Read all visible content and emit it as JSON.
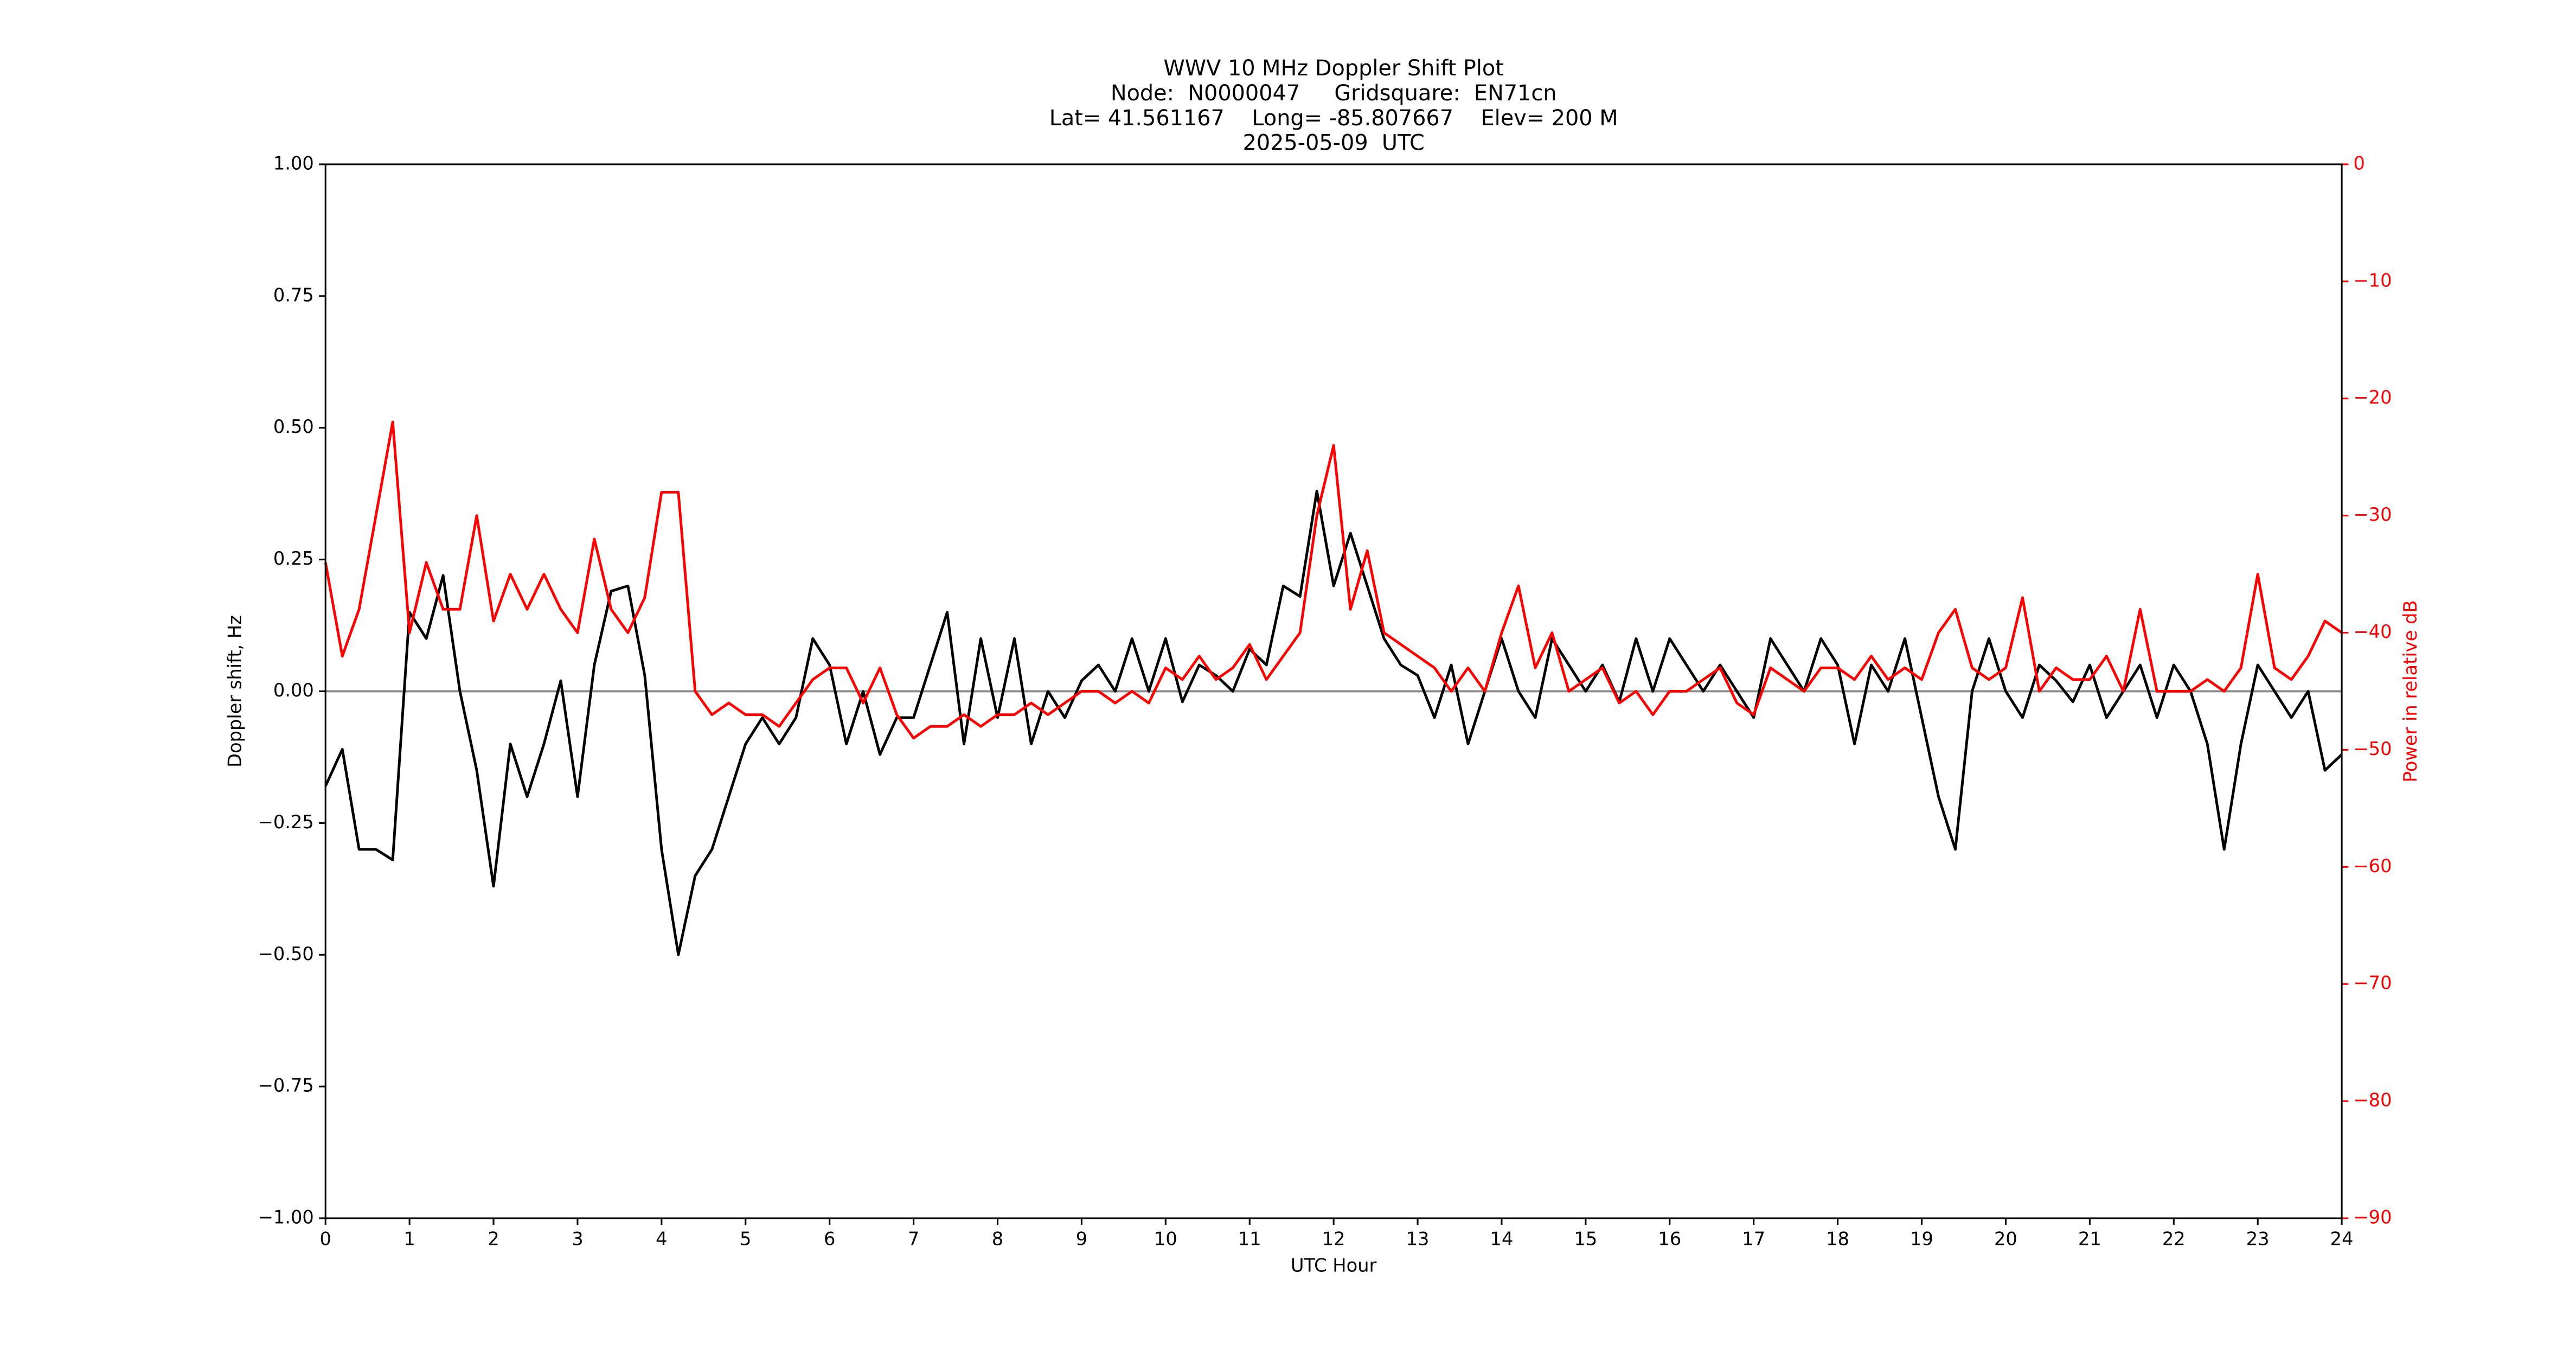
{
  "chart_data": {
    "type": "line",
    "title_lines": [
      "WWV 10 MHz Doppler Shift Plot",
      "Node:  N0000047     Gridsquare:  EN71cn",
      "Lat= 41.561167    Long= -85.807667    Elev= 200 M",
      "2025-05-09  UTC"
    ],
    "xlabel": "UTC Hour",
    "ylabel": "Doppler shift, Hz",
    "y2label": "Power in relative dB",
    "y2color": "#ff0000",
    "xlim": [
      0,
      24
    ],
    "xticks": [
      0,
      1,
      2,
      3,
      4,
      5,
      6,
      7,
      8,
      9,
      10,
      11,
      12,
      13,
      14,
      15,
      16,
      17,
      18,
      19,
      20,
      21,
      22,
      23,
      24
    ],
    "ylim": [
      -1,
      1
    ],
    "yticks": [
      {
        "value": -1,
        "label": "−1.00"
      },
      {
        "value": -0.75,
        "label": "−0.75"
      },
      {
        "value": -0.5,
        "label": "−0.50"
      },
      {
        "value": -0.25,
        "label": "−0.25"
      },
      {
        "value": 0,
        "label": "0.00"
      },
      {
        "value": 0.25,
        "label": "0.25"
      },
      {
        "value": 0.5,
        "label": "0.50"
      },
      {
        "value": 0.75,
        "label": "0.75"
      },
      {
        "value": 1,
        "label": "1.00"
      }
    ],
    "y2lim": [
      -90,
      0
    ],
    "y2ticks": [
      {
        "value": -90,
        "label": "−90"
      },
      {
        "value": -80,
        "label": "−80"
      },
      {
        "value": -70,
        "label": "−70"
      },
      {
        "value": -60,
        "label": "−60"
      },
      {
        "value": -50,
        "label": "−50"
      },
      {
        "value": -40,
        "label": "−40"
      },
      {
        "value": -30,
        "label": "−30"
      },
      {
        "value": -20,
        "label": "−20"
      },
      {
        "value": -10,
        "label": "−10"
      },
      0
    ],
    "reference_line": 0,
    "reference_color": "#888888",
    "x": [
      0,
      0.2,
      0.4,
      0.6,
      0.8,
      1,
      1.2,
      1.4,
      1.6,
      1.8,
      2,
      2.2,
      2.4,
      2.6,
      2.8,
      3,
      3.2,
      3.4,
      3.6,
      3.8,
      4,
      4.2,
      4.4,
      4.6,
      4.8,
      5,
      5.2,
      5.4,
      5.6,
      5.8,
      6,
      6.2,
      6.4,
      6.6,
      6.8,
      7,
      7.2,
      7.4,
      7.6,
      7.8,
      8,
      8.2,
      8.4,
      8.6,
      8.8,
      9,
      9.2,
      9.4,
      9.6,
      9.8,
      10,
      10.2,
      10.4,
      10.6,
      10.8,
      11,
      11.2,
      11.4,
      11.6,
      11.8,
      12,
      12.2,
      12.4,
      12.6,
      12.8,
      13,
      13.2,
      13.4,
      13.6,
      13.8,
      14,
      14.2,
      14.4,
      14.6,
      14.8,
      15,
      15.2,
      15.4,
      15.6,
      15.8,
      16,
      16.2,
      16.4,
      16.6,
      16.8,
      17,
      17.2,
      17.4,
      17.6,
      17.8,
      18,
      18.2,
      18.4,
      18.6,
      18.8,
      19,
      19.2,
      19.4,
      19.6,
      19.8,
      20,
      20.2,
      20.4,
      20.6,
      20.8,
      21,
      21.2,
      21.4,
      21.6,
      21.8,
      22,
      22.2,
      22.4,
      22.6,
      22.8,
      23,
      23.2,
      23.4,
      23.6,
      23.8,
      24
    ],
    "series": [
      {
        "color": "#000000",
        "values": [
          -0.18,
          -0.11,
          -0.3,
          -0.3,
          -0.32,
          0.15,
          0.1,
          0.22,
          0,
          -0.15,
          -0.37,
          -0.1,
          -0.2,
          -0.1,
          0.02,
          -0.2,
          0.05,
          0.19,
          0.2,
          0.03,
          -0.3,
          -0.5,
          -0.35,
          -0.3,
          -0.2,
          -0.1,
          -0.05,
          -0.1,
          -0.05,
          0.1,
          0.05,
          -0.1,
          0,
          -0.12,
          -0.05,
          -0.05,
          0.05,
          0.15,
          -0.1,
          0.1,
          -0.05,
          0.1,
          -0.1,
          0,
          -0.05,
          0.02,
          0.05,
          0,
          0.1,
          0,
          0.1,
          -0.02,
          0.05,
          0.03,
          0,
          0.08,
          0.05,
          0.2,
          0.18,
          0.38,
          0.2,
          0.3,
          0.2,
          0.1,
          0.05,
          0.03,
          -0.05,
          0.05,
          -0.1,
          0,
          0.1,
          0,
          -0.05,
          0.1,
          0.05,
          0,
          0.05,
          -0.02,
          0.1,
          0,
          0.1,
          0.05,
          0,
          0.05,
          0,
          -0.05,
          0.1,
          0.05,
          0,
          0.1,
          0.05,
          -0.1,
          0.05,
          0,
          0.1,
          -0.05,
          -0.2,
          -0.3,
          0,
          0.1,
          0,
          -0.05,
          0.05,
          0.02,
          -0.02,
          0.05,
          -0.05,
          0,
          0.05,
          -0.05,
          0.05,
          0,
          -0.1,
          -0.3,
          -0.1,
          0.05,
          0,
          -0.05,
          0,
          -0.15,
          -0.12
        ]
      },
      {
        "color": "#ff0000",
        "axis": "y2",
        "values": [
          -34,
          -42,
          -38,
          -30,
          -22,
          -40,
          -34,
          -38,
          -38,
          -30,
          -39,
          -35,
          -38,
          -35,
          -38,
          -40,
          -32,
          -38,
          -40,
          -37,
          -28,
          -28,
          -45,
          -47,
          -46,
          -47,
          -47,
          -48,
          -46,
          -44,
          -43,
          -43,
          -46,
          -43,
          -47,
          -49,
          -48,
          -48,
          -47,
          -48,
          -47,
          -47,
          -46,
          -47,
          -46,
          -45,
          -45,
          -46,
          -45,
          -46,
          -43,
          -44,
          -42,
          -44,
          -43,
          -41,
          -44,
          -42,
          -40,
          -30,
          -24,
          -38,
          -33,
          -40,
          -41,
          -42,
          -43,
          -45,
          -43,
          -45,
          -40,
          -36,
          -43,
          -40,
          -45,
          -44,
          -43,
          -46,
          -45,
          -47,
          -45,
          -45,
          -44,
          -43,
          -46,
          -47,
          -43,
          -44,
          -45,
          -43,
          -43,
          -44,
          -42,
          -44,
          -43,
          -44,
          -40,
          -38,
          -43,
          -44,
          -43,
          -37,
          -45,
          -43,
          -44,
          -44,
          -42,
          -45,
          -38,
          -45,
          -45,
          -45,
          -44,
          -45,
          -43,
          -35,
          -43,
          -44,
          -42,
          -39,
          -40
        ]
      }
    ]
  }
}
